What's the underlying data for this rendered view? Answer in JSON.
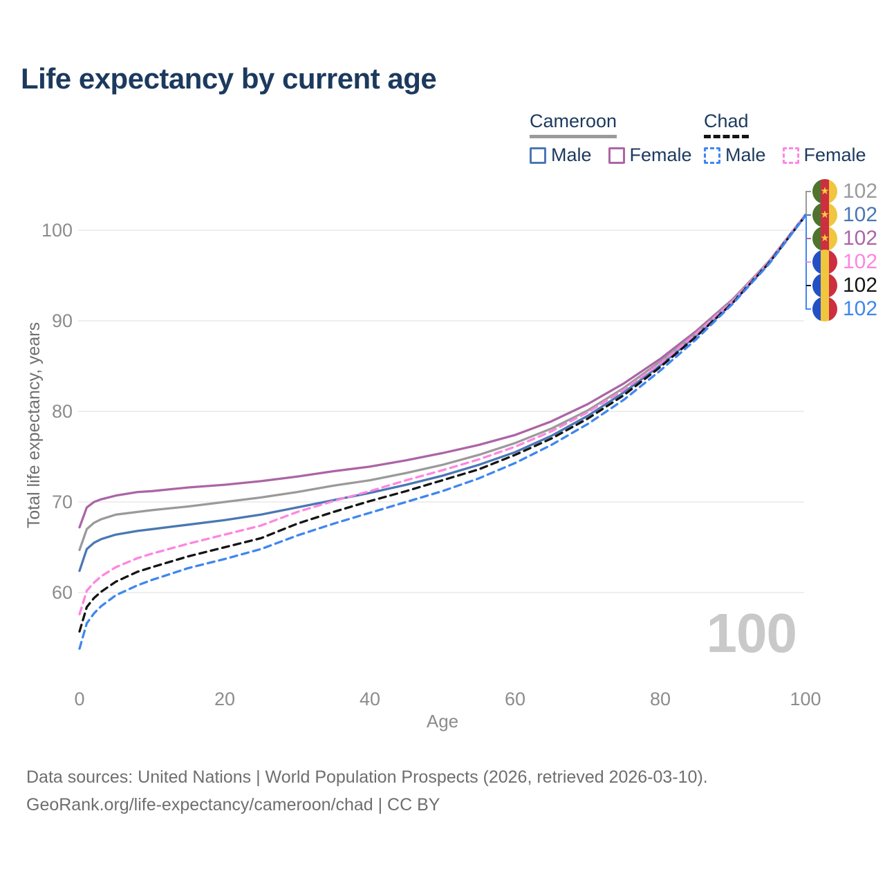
{
  "title": "Life expectancy by current age",
  "watermark": "100",
  "legend": {
    "groups": [
      {
        "label": "Cameroon",
        "underline_color": "#9a9a9a",
        "underline_style": "solid",
        "items": [
          {
            "label": "Male",
            "color": "#4a77b4",
            "dashed": false
          },
          {
            "label": "Female",
            "color": "#ab65a6",
            "dashed": false
          }
        ]
      },
      {
        "label": "Chad",
        "underline_color": "#141414",
        "underline_style": "dashed",
        "items": [
          {
            "label": "Male",
            "color": "#3f86f0",
            "dashed": true
          },
          {
            "label": "Female",
            "color": "#ff85e0",
            "dashed": true
          }
        ]
      }
    ]
  },
  "axes": {
    "x": {
      "label": "Age",
      "ticks": [
        0,
        20,
        40,
        60,
        80,
        100
      ],
      "range": [
        0,
        100
      ]
    },
    "y": {
      "label": "Total life expectancy, years",
      "ticks": [
        60,
        70,
        80,
        90,
        100
      ],
      "range": [
        53,
        103
      ]
    }
  },
  "callouts": {
    "rows": [
      {
        "flag": "cameroon",
        "series": "Cameroon Total",
        "label": "102",
        "color": "#9a9a9a"
      },
      {
        "flag": "cameroon",
        "series": "Cameroon Male",
        "label": "102",
        "color": "#4a77b4"
      },
      {
        "flag": "cameroon",
        "series": "Cameroon Female",
        "label": "102",
        "color": "#ab65a6"
      },
      {
        "flag": "chad",
        "series": "Chad Female",
        "label": "102",
        "color": "#ff85e0"
      },
      {
        "flag": "chad",
        "series": "Chad Total",
        "label": "102",
        "color": "#141414"
      },
      {
        "flag": "chad",
        "series": "Chad Male",
        "label": "102",
        "color": "#3f86f0"
      }
    ],
    "flag_colors": {
      "cameroon": [
        "#4e7430",
        "#cc2f3f",
        "#f0c63e"
      ],
      "cameroon_star": "#f4cf3e",
      "chad": [
        "#2351c5",
        "#f0c63e",
        "#cc2f3f"
      ]
    }
  },
  "footer": {
    "line1": "Data sources: United Nations | World Population Prospects (2026, retrieved 2026-03-10).",
    "line2": "GeoRank.org/life-expectancy/cameroon/chad | CC BY"
  },
  "chart_data": {
    "type": "line",
    "title": "Life expectancy by current age",
    "xlabel": "Age",
    "ylabel": "Total life expectancy, years",
    "xlim": [
      0,
      100
    ],
    "ylim": [
      53,
      103
    ],
    "grid": "horizontal",
    "legend_position": "top-right",
    "end_value_label": "102",
    "x": [
      0,
      1,
      2,
      3,
      5,
      8,
      10,
      15,
      20,
      25,
      30,
      35,
      40,
      45,
      50,
      55,
      60,
      65,
      70,
      75,
      80,
      85,
      90,
      95,
      100
    ],
    "series": [
      {
        "name": "Cameroon Female",
        "color": "#ab65a6",
        "dash": null,
        "values": [
          67.2,
          69.4,
          70.0,
          70.3,
          70.7,
          71.1,
          71.2,
          71.6,
          71.9,
          72.3,
          72.8,
          73.4,
          73.9,
          74.6,
          75.4,
          76.3,
          77.4,
          78.9,
          80.8,
          83.1,
          85.8,
          88.9,
          92.4,
          96.6,
          101.7
        ]
      },
      {
        "name": "Cameroon Total",
        "color": "#9a9a9a",
        "dash": null,
        "values": [
          64.7,
          67.0,
          67.7,
          68.1,
          68.6,
          68.9,
          69.1,
          69.5,
          70.0,
          70.5,
          71.1,
          71.8,
          72.4,
          73.2,
          74.1,
          75.2,
          76.5,
          78.1,
          80.1,
          82.6,
          85.5,
          88.7,
          92.3,
          96.6,
          101.7
        ]
      },
      {
        "name": "Cameroon Male",
        "color": "#4a77b4",
        "dash": null,
        "values": [
          62.4,
          64.8,
          65.5,
          65.9,
          66.4,
          66.8,
          67.0,
          67.5,
          68.0,
          68.6,
          69.4,
          70.2,
          71.0,
          71.9,
          72.9,
          74.1,
          75.5,
          77.3,
          79.5,
          82.1,
          85.1,
          88.4,
          92.1,
          96.5,
          101.7
        ]
      },
      {
        "name": "Chad Female",
        "color": "#ff85e0",
        "dash": [
          10,
          7
        ],
        "values": [
          57.6,
          60.2,
          61.1,
          61.8,
          62.8,
          63.8,
          64.3,
          65.4,
          66.4,
          67.4,
          68.9,
          70.1,
          71.2,
          72.4,
          73.5,
          74.7,
          76.1,
          77.8,
          79.9,
          82.4,
          85.3,
          88.6,
          92.2,
          96.5,
          101.7
        ]
      },
      {
        "name": "Chad Total",
        "color": "#141414",
        "dash": [
          10,
          7
        ],
        "values": [
          55.7,
          58.4,
          59.4,
          60.1,
          61.2,
          62.3,
          62.8,
          64.0,
          65.0,
          66.0,
          67.6,
          68.9,
          70.1,
          71.2,
          72.4,
          73.6,
          75.2,
          77.0,
          79.2,
          81.8,
          84.9,
          88.3,
          92.0,
          96.4,
          101.6
        ]
      },
      {
        "name": "Chad Male",
        "color": "#3f86f0",
        "dash": [
          10,
          7
        ],
        "values": [
          53.8,
          56.6,
          57.7,
          58.5,
          59.7,
          60.8,
          61.4,
          62.7,
          63.7,
          64.8,
          66.3,
          67.6,
          68.8,
          70.0,
          71.2,
          72.6,
          74.3,
          76.3,
          78.6,
          81.3,
          84.5,
          88.0,
          91.9,
          96.3,
          101.6
        ]
      }
    ]
  }
}
